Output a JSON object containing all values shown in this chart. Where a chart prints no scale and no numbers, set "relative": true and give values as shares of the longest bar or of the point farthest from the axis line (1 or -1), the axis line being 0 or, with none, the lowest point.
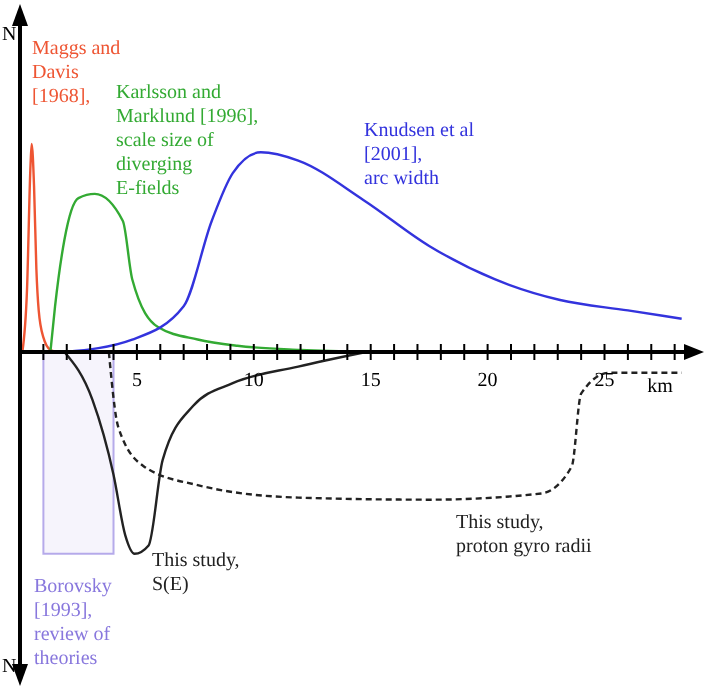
{
  "chart_data": {
    "type": "line",
    "relative": true,
    "xlabel": "km",
    "ylabel": "N",
    "xlim": [
      0,
      28.4
    ],
    "xticks": [
      {
        "value": 1,
        "label": null
      },
      {
        "value": 2,
        "label": null
      },
      {
        "value": 3,
        "label": null
      },
      {
        "value": 4,
        "label": null
      },
      5,
      {
        "value": 6,
        "label": null
      },
      {
        "value": 7,
        "label": null
      },
      {
        "value": 8,
        "label": null
      },
      {
        "value": 9,
        "label": null
      },
      10,
      {
        "value": 11,
        "label": null
      },
      {
        "value": 12,
        "label": null
      },
      {
        "value": 13,
        "label": null
      },
      {
        "value": 14,
        "label": null
      },
      15,
      {
        "value": 16,
        "label": null
      },
      {
        "value": 17,
        "label": null
      },
      {
        "value": 18,
        "label": null
      },
      {
        "value": 19,
        "label": null
      },
      20,
      {
        "value": 21,
        "label": null
      },
      {
        "value": 22,
        "label": null
      },
      {
        "value": 23,
        "label": null
      },
      {
        "value": 24,
        "label": null
      },
      25,
      {
        "value": 26,
        "label": null
      },
      {
        "value": 27,
        "label": null
      },
      {
        "value": 28,
        "label": null
      }
    ],
    "grid": false,
    "marker": "none",
    "series": [
      {
        "name": "Maggs and Davis [1968],",
        "color": "#ee5533",
        "line_style": "solid",
        "x": [
          0.1,
          0.3,
          0.45,
          0.5,
          0.6,
          0.7,
          0.8,
          1.0,
          1.3,
          1.6
        ],
        "values": [
          0,
          0.3,
          0.9,
          1,
          0.8,
          0.4,
          0.2,
          0.07,
          0.01,
          0
        ]
      },
      {
        "name": "Karlsson and Marklund [1996], scale size of diverging E-fields",
        "color": "#33aa33",
        "line_style": "solid",
        "x": [
          1.3,
          1.5,
          1.9,
          2.5,
          3.2,
          4.4,
          4.8,
          5.9,
          7.6,
          9.3,
          12,
          15
        ],
        "values": [
          0,
          0.22,
          0.54,
          0.74,
          0.76,
          0.63,
          0.35,
          0.12,
          0.06,
          0.03,
          0.01,
          0
        ]
      },
      {
        "name": "Knudsen et al [2001], arc width",
        "color": "#3333dd",
        "line_style": "solid",
        "x": [
          1.9,
          4.8,
          7.0,
          8.2,
          9.1,
          10.3,
          11.9,
          14.7,
          17.5,
          20.3,
          23.1,
          26,
          28.3
        ],
        "values": [
          0,
          0.06,
          0.22,
          0.63,
          0.86,
          0.96,
          0.92,
          0.73,
          0.51,
          0.35,
          0.25,
          0.2,
          0.16
        ]
      },
      {
        "name": "This study, S(E)",
        "color": "#222222",
        "line_style": "solid",
        "x": [
          1.9,
          3.1,
          4.0,
          4.5,
          4.9,
          5.5,
          6.1,
          7.4,
          9.1,
          11.9,
          14.8
        ],
        "values": [
          0,
          -0.23,
          -0.59,
          -0.88,
          -0.97,
          -0.93,
          -0.52,
          -0.26,
          -0.15,
          -0.07,
          0
        ]
      },
      {
        "name": "This study, proton gyro radii",
        "color": "#222222",
        "line_style": "dashed",
        "x": [
          3.8,
          4.2,
          5.3,
          7.6,
          11.9,
          17.5,
          22.3,
          23.6,
          24,
          25.2,
          28.3
        ],
        "values": [
          0,
          -0.36,
          -0.55,
          -0.64,
          -0.7,
          -0.71,
          -0.68,
          -0.55,
          -0.2,
          -0.1,
          -0.1
        ]
      }
    ],
    "bands": [
      {
        "axis": "x",
        "from": 1,
        "to": 4,
        "label": "Borovsky [1993], review of theories",
        "color": "#8877dd"
      }
    ],
    "annotations": [
      "N"
    ]
  }
}
